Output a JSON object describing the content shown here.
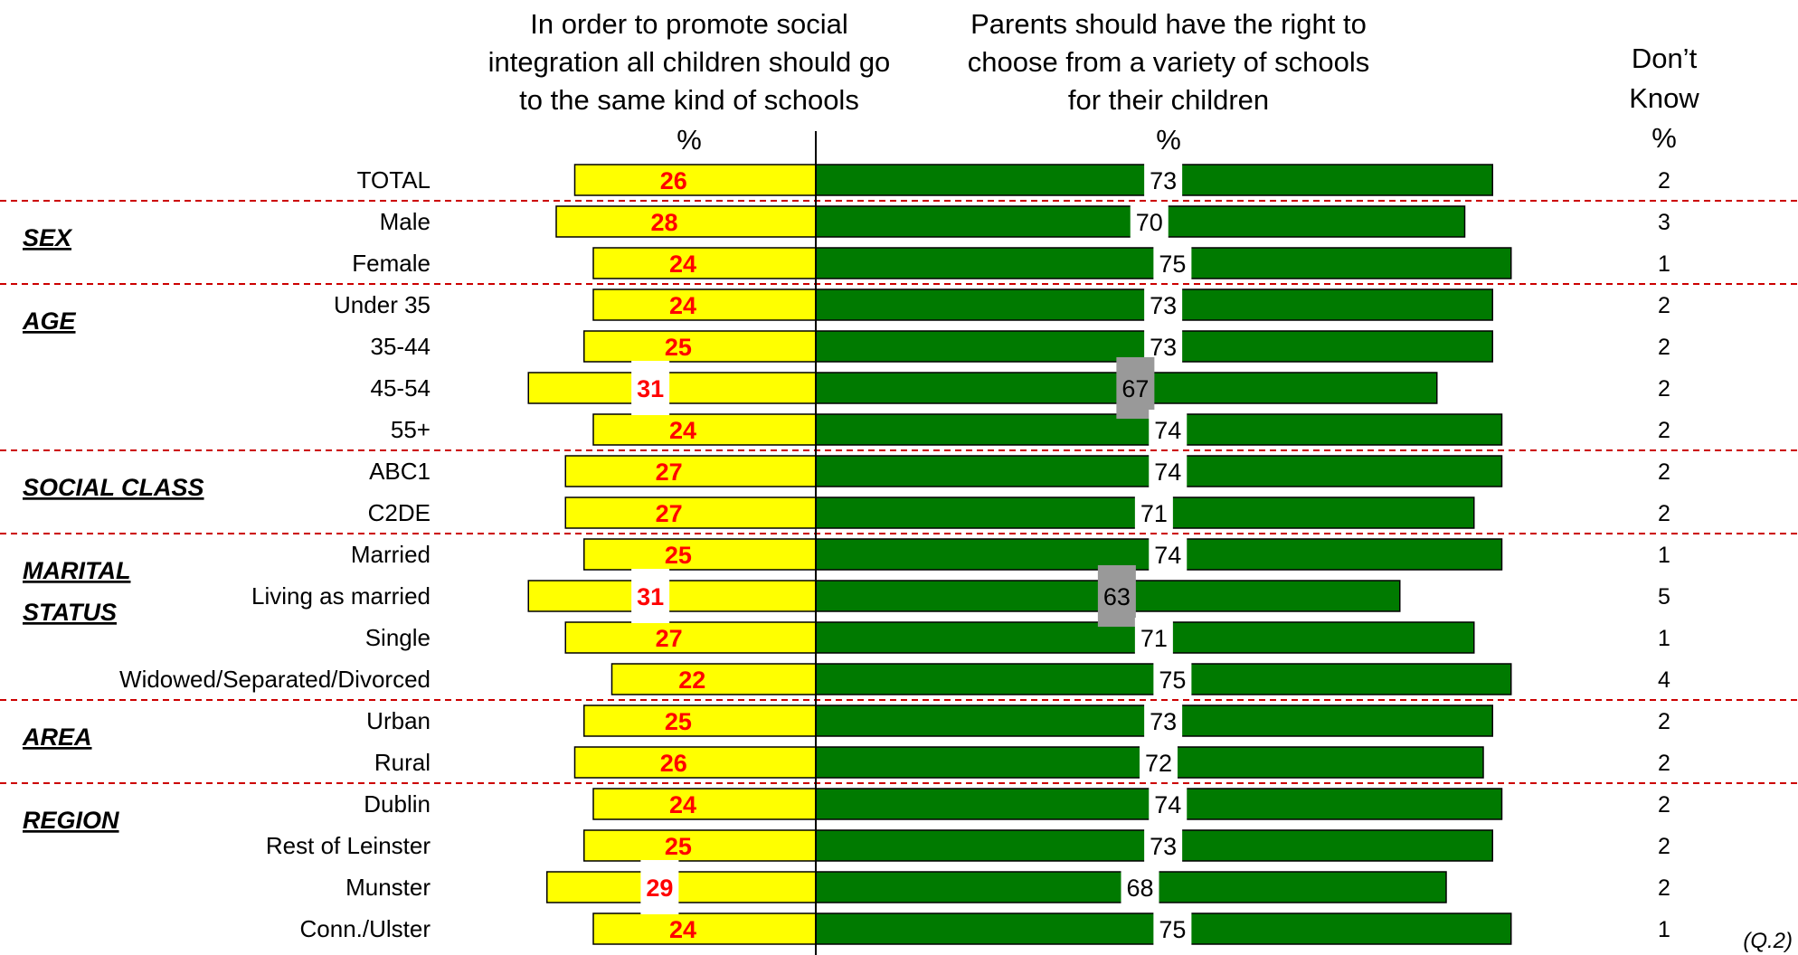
{
  "chart_data": {
    "type": "bar",
    "headers": {
      "left": [
        "In order to promote social",
        "integration all children should go",
        "to the same kind of schools"
      ],
      "right": [
        "Parents should have the right to",
        "choose from a variety of schools",
        "for their children"
      ],
      "dk": [
        "Don’t",
        "Know"
      ],
      "pct": "%"
    },
    "series": [
      {
        "name": "In order to promote social integration all children should go to the same kind of schools"
      },
      {
        "name": "Parents should have the right to choose from a variety of schools for their children"
      },
      {
        "name": "Don’t Know"
      }
    ],
    "xlim": [
      -31,
      75
    ],
    "groups": [
      {
        "name": "",
        "rows": [
          {
            "label": "TOTAL",
            "same": 26,
            "choose": 73,
            "dk": 2
          }
        ]
      },
      {
        "name": "SEX",
        "rows": [
          {
            "label": "Male",
            "same": 28,
            "choose": 70,
            "dk": 3
          },
          {
            "label": "Female",
            "same": 24,
            "choose": 75,
            "dk": 1
          }
        ]
      },
      {
        "name": "AGE",
        "rows": [
          {
            "label": "Under 35",
            "same": 24,
            "choose": 73,
            "dk": 2
          },
          {
            "label": "35-44",
            "same": 25,
            "choose": 73,
            "dk": 2
          },
          {
            "label": "45-54",
            "same": 31,
            "choose": 67,
            "dk": 2
          },
          {
            "label": "55+",
            "same": 24,
            "choose": 74,
            "dk": 2
          }
        ]
      },
      {
        "name": "SOCIAL CLASS",
        "rows": [
          {
            "label": "ABC1",
            "same": 27,
            "choose": 74,
            "dk": 2
          },
          {
            "label": "C2DE",
            "same": 27,
            "choose": 71,
            "dk": 2
          }
        ]
      },
      {
        "name": [
          "MARITAL",
          "STATUS"
        ],
        "rows": [
          {
            "label": "Married",
            "same": 25,
            "choose": 74,
            "dk": 1
          },
          {
            "label": "Living as married",
            "same": 31,
            "choose": 63,
            "dk": 5
          },
          {
            "label": "Single",
            "same": 27,
            "choose": 71,
            "dk": 1
          },
          {
            "label": "Widowed/Separated/Divorced",
            "same": 22,
            "choose": 75,
            "dk": 4
          }
        ]
      },
      {
        "name": "AREA",
        "rows": [
          {
            "label": "Urban",
            "same": 25,
            "choose": 73,
            "dk": 2
          },
          {
            "label": "Rural",
            "same": 26,
            "choose": 72,
            "dk": 2
          }
        ]
      },
      {
        "name": "REGION",
        "rows": [
          {
            "label": "Dublin",
            "same": 24,
            "choose": 74,
            "dk": 2
          },
          {
            "label": "Rest of Leinster",
            "same": 25,
            "choose": 73,
            "dk": 2
          },
          {
            "label": "Munster",
            "same": 29,
            "choose": 68,
            "dk": 2
          },
          {
            "label": "Conn./Ulster",
            "same": 24,
            "choose": 75,
            "dk": 1
          }
        ]
      }
    ],
    "footnote": "(Q.2)",
    "colors": {
      "same": "#ffff00",
      "choose": "#007a00",
      "same_text": "#ff0000",
      "highlight_box": "#999999",
      "divider": "#cc0000"
    }
  }
}
